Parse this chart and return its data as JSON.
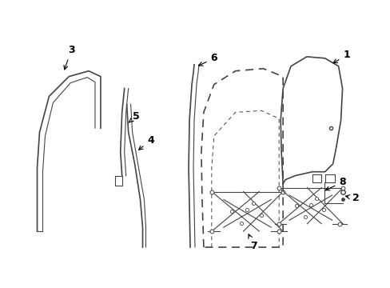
{
  "bg_color": "#ffffff",
  "line_color": "#444444",
  "text_color": "#000000",
  "figsize": [
    4.89,
    3.6
  ],
  "dpi": 100
}
